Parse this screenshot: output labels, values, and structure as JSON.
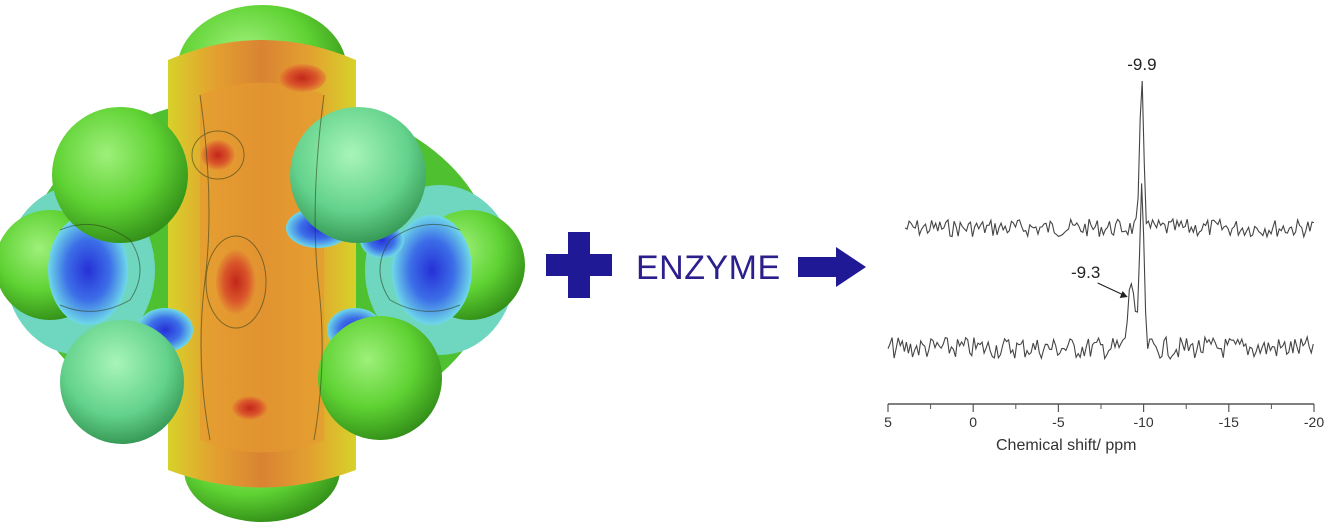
{
  "operator": {
    "plus_icon": "plus-icon",
    "arrow_icon": "arrow-right-icon",
    "color": "#1f1996"
  },
  "reagent_label": "ENZYME",
  "molecule": {
    "icon": "electrostatic-potential-surface"
  },
  "chart_data": {
    "type": "line",
    "xlabel": "Chemical shift/ ppm",
    "xlim": [
      5,
      -20
    ],
    "x_ticks": [
      5,
      0,
      -5,
      -10,
      -15,
      -20
    ],
    "x_tick_labels": [
      "5",
      "0",
      "-5",
      "-10",
      "-15",
      "-20"
    ],
    "series": [
      {
        "offset": "upper",
        "peaks": [
          {
            "x": -9.9,
            "height": 1.0
          }
        ]
      },
      {
        "offset": "lower",
        "peaks": [
          {
            "x": -9.9,
            "height": 1.0
          },
          {
            "x": -9.3,
            "height": 0.4
          }
        ]
      }
    ],
    "annotations": [
      {
        "text": "-9.9",
        "x": -9.9,
        "series": 0
      },
      {
        "text": "-9.3",
        "x": -9.3,
        "series": 1,
        "arrow": true
      }
    ]
  }
}
